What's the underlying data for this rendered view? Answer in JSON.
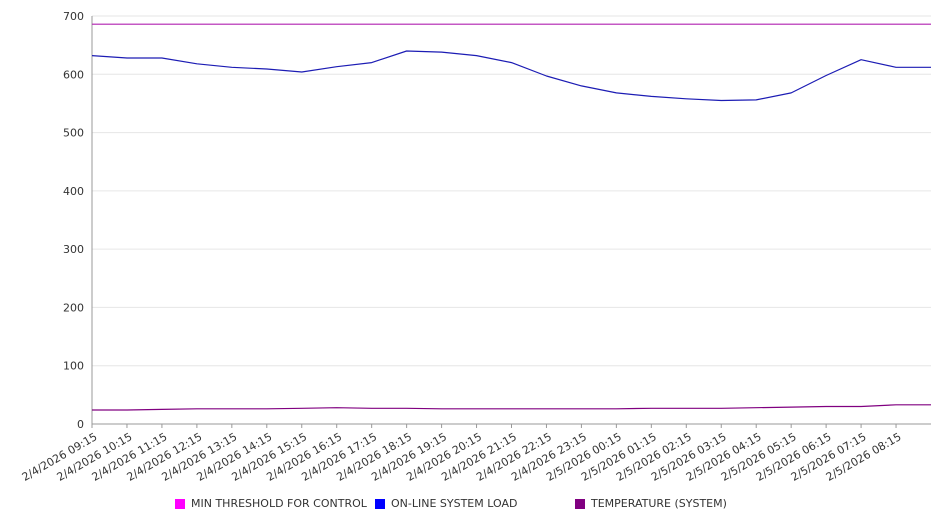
{
  "chart_data": {
    "type": "line",
    "title": "",
    "xlabel": "",
    "ylabel": "",
    "ylim": [
      0,
      700
    ],
    "yticks": [
      0,
      100,
      200,
      300,
      400,
      500,
      600,
      700
    ],
    "grid": "horizontal",
    "legend_position": "bottom",
    "x": [
      "2/4/2026 09:15",
      "2/4/2026 10:15",
      "2/4/2026 11:15",
      "2/4/2026 12:15",
      "2/4/2026 13:15",
      "2/4/2026 14:15",
      "2/4/2026 15:15",
      "2/4/2026 16:15",
      "2/4/2026 17:15",
      "2/4/2026 18:15",
      "2/4/2026 19:15",
      "2/4/2026 20:15",
      "2/4/2026 21:15",
      "2/4/2026 22:15",
      "2/4/2026 23:15",
      "2/5/2026 00:15",
      "2/5/2026 01:15",
      "2/5/2026 02:15",
      "2/5/2026 03:15",
      "2/5/2026 04:15",
      "2/5/2026 05:15",
      "2/5/2026 06:15",
      "2/5/2026 07:15",
      "2/5/2026 08:15"
    ],
    "series": [
      {
        "name": "MIN THRESHOLD FOR CONTROL",
        "color": "#ff00ff",
        "line_color": "#b020b0",
        "values": [
          686,
          686,
          686,
          686,
          686,
          686,
          686,
          686,
          686,
          686,
          686,
          686,
          686,
          686,
          686,
          686,
          686,
          686,
          686,
          686,
          686,
          686,
          686,
          686
        ]
      },
      {
        "name": "ON-LINE SYSTEM LOAD",
        "color": "#0000ff",
        "line_color": "#1c1cb4",
        "values": [
          632,
          628,
          628,
          618,
          612,
          609,
          604,
          613,
          620,
          640,
          638,
          632,
          620,
          597,
          580,
          568,
          562,
          558,
          555,
          556,
          568,
          598,
          625,
          612
        ]
      },
      {
        "name": "TEMPERATURE (SYSTEM)",
        "color": "#800080",
        "line_color": "#800080",
        "values": [
          24,
          24,
          25,
          26,
          26,
          26,
          27,
          28,
          27,
          27,
          26,
          26,
          26,
          26,
          26,
          26,
          27,
          27,
          27,
          28,
          29,
          30,
          30,
          33
        ]
      }
    ]
  }
}
